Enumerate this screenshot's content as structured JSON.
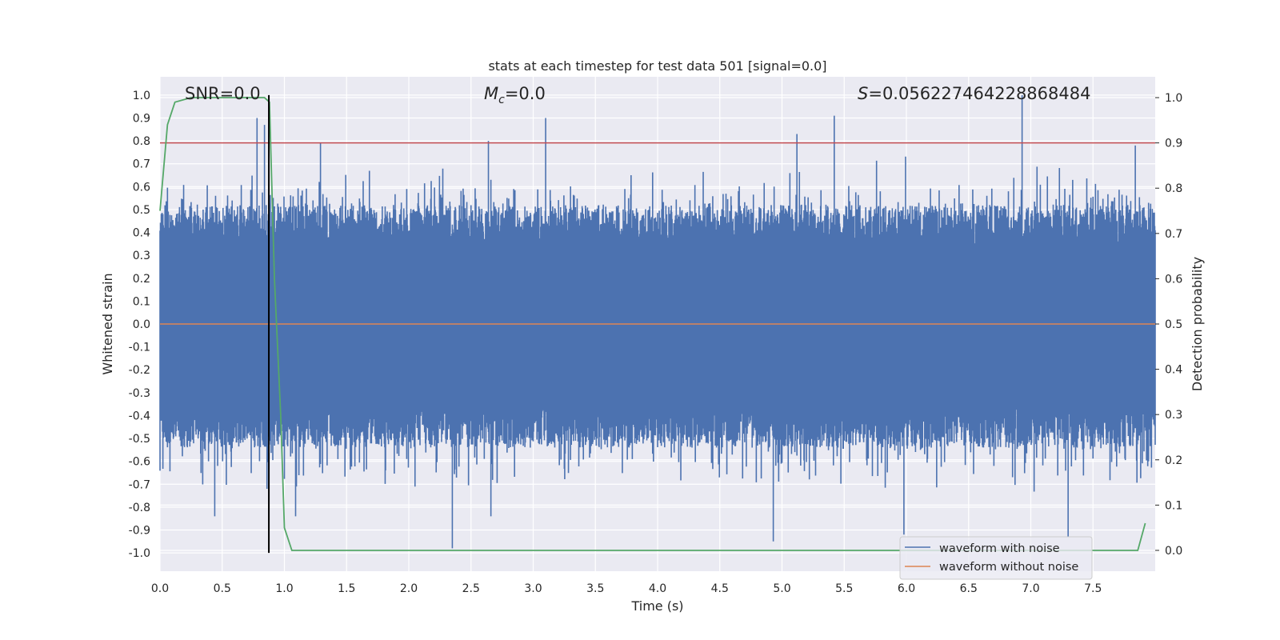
{
  "chart_data": {
    "type": "line",
    "title": "stats at each timestep for test data 501 [signal=0.0]",
    "xlabel": "Time (s)",
    "ylabel_left": "Whitened strain",
    "ylabel_right": "Detection probability",
    "xlim": [
      0.0,
      8.0
    ],
    "ylim_left": [
      -1.08,
      1.08
    ],
    "ylim_right": [
      -0.046,
      1.046
    ],
    "x_ticks": [
      "0.0",
      "0.5",
      "1.0",
      "1.5",
      "2.0",
      "2.5",
      "3.0",
      "3.5",
      "4.0",
      "4.5",
      "5.0",
      "5.5",
      "6.0",
      "6.5",
      "7.0",
      "7.5"
    ],
    "y_ticks_left": [
      "1.0",
      "0.9",
      "0.8",
      "0.7",
      "0.6",
      "0.5",
      "0.4",
      "0.3",
      "0.2",
      "0.1",
      "0.0",
      "-0.1",
      "-0.2",
      "-0.3",
      "-0.4",
      "-0.5",
      "-0.6",
      "-0.7",
      "-0.8",
      "-0.9",
      "-1.0"
    ],
    "y_ticks_right": [
      "1.0",
      "0.9",
      "0.8",
      "0.7",
      "0.6",
      "0.5",
      "0.4",
      "0.3",
      "0.2",
      "0.1",
      "0.0"
    ],
    "grid": true,
    "annotations": {
      "snr": "SNR=0.0",
      "mc_symbol": "M",
      "mc_subscript": "c",
      "mc_value": "=0.0",
      "s_symbol": "S",
      "s_value": "=0.056227464228868484"
    },
    "threshold": {
      "value": 0.9,
      "axis": "right",
      "color": "#c44e52"
    },
    "peak_marker": {
      "x": 0.875,
      "y_from": -1.0,
      "y_to": 1.0,
      "color": "#000000"
    },
    "legend": {
      "placement": "lower-right",
      "entries": [
        "waveform with noise",
        "waveform without noise"
      ]
    },
    "series": [
      {
        "name": "waveform with noise",
        "axis": "left",
        "color": "#4c72b0",
        "description": "noise-like whitened strain; notable peaks listed",
        "peaks": [
          {
            "x": 0.78,
            "y": 0.9
          },
          {
            "x": 0.84,
            "y": 0.87
          },
          {
            "x": 1.29,
            "y": 0.79
          },
          {
            "x": 2.64,
            "y": 0.8
          },
          {
            "x": 3.1,
            "y": 0.9
          },
          {
            "x": 5.12,
            "y": 0.83
          },
          {
            "x": 5.42,
            "y": 0.91
          },
          {
            "x": 6.93,
            "y": 1.0
          },
          {
            "x": 7.84,
            "y": 0.78
          }
        ],
        "troughs": [
          {
            "x": 0.44,
            "y": -0.84
          },
          {
            "x": 0.86,
            "y": -0.72
          },
          {
            "x": 1.09,
            "y": -0.84
          },
          {
            "x": 2.35,
            "y": -0.98
          },
          {
            "x": 2.66,
            "y": -0.84
          },
          {
            "x": 4.93,
            "y": -0.95
          },
          {
            "x": 5.98,
            "y": -0.92
          },
          {
            "x": 7.3,
            "y": -0.93
          }
        ]
      },
      {
        "name": "waveform without noise",
        "axis": "left",
        "color": "#dd8452",
        "x": [
          0.0,
          8.0
        ],
        "y": [
          0.0,
          0.0
        ]
      },
      {
        "name": "detection probability",
        "axis": "right",
        "color": "#55a868",
        "x": [
          0.0,
          0.06,
          0.12,
          0.25,
          0.5,
          0.75,
          0.84,
          0.88,
          0.92,
          0.97,
          1.0,
          1.06,
          1.1,
          1.5,
          7.8,
          7.86,
          7.92
        ],
        "y": [
          0.75,
          0.94,
          0.99,
          1.0,
          1.0,
          1.0,
          1.0,
          0.99,
          0.6,
          0.3,
          0.05,
          0.0,
          0.0,
          0.0,
          0.0,
          0.0,
          0.06
        ]
      }
    ]
  }
}
